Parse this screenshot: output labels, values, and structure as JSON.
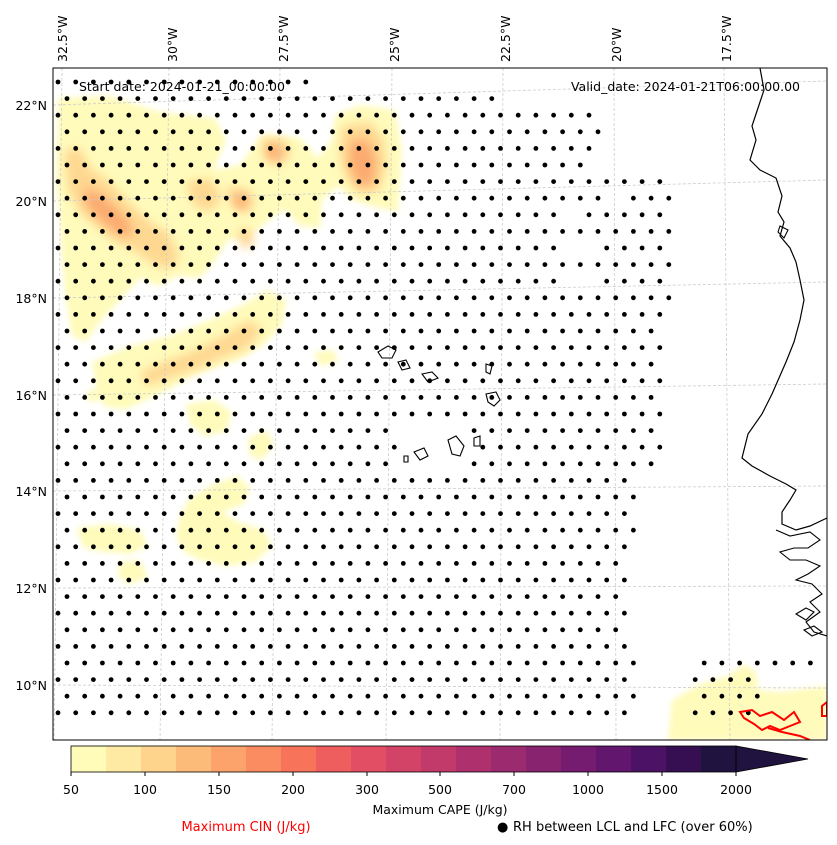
{
  "map": {
    "start_date": "Start date: 2024-01-21_00:00:00",
    "valid_date": "Valid_date: 2024-01-21T06:00:00.00",
    "lon_labels": [
      "32.5°W",
      "30°W",
      "27.5°W",
      "25°W",
      "22.5°W",
      "20°W",
      "17.5°W"
    ],
    "lat_labels": [
      "22°N",
      "20°N",
      "18°N",
      "16°N",
      "14°N",
      "12°N",
      "10°N"
    ],
    "gridlines": true,
    "colors": {
      "coastline": "#000000",
      "cin_contour": "#ff0000",
      "rh_dots": "#000000",
      "grid": "#c8c8c8"
    }
  },
  "colorbar": {
    "label": "Maximum CAPE (J/kg)",
    "tick_labels": [
      "50",
      "100",
      "150",
      "200",
      "300",
      "500",
      "700",
      "1000",
      "1500",
      "2000"
    ],
    "colors": [
      "#fffbb8",
      "#feeaa2",
      "#fed48d",
      "#fdbb7a",
      "#fca36b",
      "#fb8b60",
      "#f7745b",
      "#ef5e5e",
      "#e24e63",
      "#d24367",
      "#c13a6a",
      "#ae316d",
      "#9b2a6f",
      "#882370",
      "#751c70",
      "#62166e",
      "#4c1266",
      "#360f52",
      "#211340"
    ],
    "extend": "max"
  },
  "legend": {
    "cin_label": "Maximum CIN (J/kg)",
    "rh_label": "RH between LCL and LFC (over 60%)",
    "rh_symbol": "●"
  }
}
